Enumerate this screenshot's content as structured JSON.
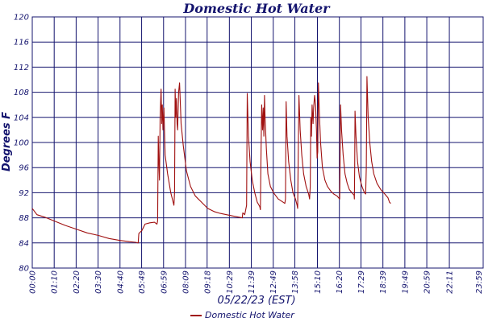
{
  "chart_data": {
    "type": "line",
    "title": "Domestic Hot Water",
    "xlabel": "05/22/23 (EST)",
    "ylabel": "Degrees F",
    "ylim": [
      80,
      120
    ],
    "yticks": [
      80,
      84,
      88,
      92,
      96,
      100,
      104,
      108,
      112,
      116,
      120
    ],
    "xlim_minutes": [
      0,
      1439
    ],
    "xticks": [
      {
        "label": "00:00",
        "minute": 0
      },
      {
        "label": "01:10",
        "minute": 70
      },
      {
        "label": "02:20",
        "minute": 140
      },
      {
        "label": "03:30",
        "minute": 210
      },
      {
        "label": "04:40",
        "minute": 280
      },
      {
        "label": "05:49",
        "minute": 349
      },
      {
        "label": "06:59",
        "minute": 419
      },
      {
        "label": "08:09",
        "minute": 489
      },
      {
        "label": "09:18",
        "minute": 558
      },
      {
        "label": "10:29",
        "minute": 629
      },
      {
        "label": "11:39",
        "minute": 699
      },
      {
        "label": "12:49",
        "minute": 769
      },
      {
        "label": "13:58",
        "minute": 838
      },
      {
        "label": "15:10",
        "minute": 910
      },
      {
        "label": "16:20",
        "minute": 980
      },
      {
        "label": "17:29",
        "minute": 1049
      },
      {
        "label": "18:39",
        "minute": 1119
      },
      {
        "label": "19:49",
        "minute": 1189
      },
      {
        "label": "20:59",
        "minute": 1259
      },
      {
        "label": "22:11",
        "minute": 1331
      },
      {
        "label": "23:59",
        "minute": 1439
      }
    ],
    "grid": true,
    "legend": "bottom",
    "series": [
      {
        "name": "Domestic Hot Water",
        "color": "#a01010",
        "points": [
          [
            0,
            89.5
          ],
          [
            15,
            88.5
          ],
          [
            40,
            88.1
          ],
          [
            70,
            87.5
          ],
          [
            105,
            86.8
          ],
          [
            140,
            86.2
          ],
          [
            175,
            85.6
          ],
          [
            210,
            85.2
          ],
          [
            245,
            84.7
          ],
          [
            280,
            84.4
          ],
          [
            310,
            84.2
          ],
          [
            330,
            84.1
          ],
          [
            338,
            84.0
          ],
          [
            340,
            85.5
          ],
          [
            350,
            86.0
          ],
          [
            360,
            87.0
          ],
          [
            375,
            87.2
          ],
          [
            390,
            87.3
          ],
          [
            398,
            87.0
          ],
          [
            400,
            87.5
          ],
          [
            402,
            101.0
          ],
          [
            404,
            97.0
          ],
          [
            406,
            94.0
          ],
          [
            408,
            104.0
          ],
          [
            411,
            108.5
          ],
          [
            413,
            103.0
          ],
          [
            415,
            106.0
          ],
          [
            417,
            102.0
          ],
          [
            420,
            105.5
          ],
          [
            424,
            98.0
          ],
          [
            432,
            95.0
          ],
          [
            442,
            92.0
          ],
          [
            452,
            90.0
          ],
          [
            454,
            92.0
          ],
          [
            456,
            108.5
          ],
          [
            458,
            104.0
          ],
          [
            460,
            107.0
          ],
          [
            462,
            103.0
          ],
          [
            464,
            102.0
          ],
          [
            467,
            108.0
          ],
          [
            470,
            109.5
          ],
          [
            475,
            103.0
          ],
          [
            482,
            99.5
          ],
          [
            492,
            95.5
          ],
          [
            505,
            93.0
          ],
          [
            520,
            91.5
          ],
          [
            540,
            90.5
          ],
          [
            560,
            89.5
          ],
          [
            580,
            89.0
          ],
          [
            600,
            88.7
          ],
          [
            620,
            88.5
          ],
          [
            640,
            88.3
          ],
          [
            660,
            88.1
          ],
          [
            670,
            88.0
          ],
          [
            672,
            88.8
          ],
          [
            678,
            88.5
          ],
          [
            684,
            90.0
          ],
          [
            686,
            107.8
          ],
          [
            690,
            101.0
          ],
          [
            695,
            97.0
          ],
          [
            702,
            94.0
          ],
          [
            710,
            92.0
          ],
          [
            718,
            90.5
          ],
          [
            726,
            89.8
          ],
          [
            728,
            89.3
          ],
          [
            730,
            98.5
          ],
          [
            732,
            106.0
          ],
          [
            735,
            102.0
          ],
          [
            737,
            105.5
          ],
          [
            739,
            101.0
          ],
          [
            741,
            107.5
          ],
          [
            743,
            104.0
          ],
          [
            747,
            99.0
          ],
          [
            752,
            95.0
          ],
          [
            760,
            93.0
          ],
          [
            770,
            92.0
          ],
          [
            785,
            91.0
          ],
          [
            800,
            90.5
          ],
          [
            806,
            90.3
          ],
          [
            808,
            91.0
          ],
          [
            810,
            106.5
          ],
          [
            813,
            101.0
          ],
          [
            818,
            97.0
          ],
          [
            825,
            94.0
          ],
          [
            832,
            92.0
          ],
          [
            840,
            91.0
          ],
          [
            845,
            90.0
          ],
          [
            847,
            89.5
          ],
          [
            849,
            99.0
          ],
          [
            851,
            107.5
          ],
          [
            855,
            102.0
          ],
          [
            860,
            98.0
          ],
          [
            866,
            95.0
          ],
          [
            874,
            93.0
          ],
          [
            882,
            91.8
          ],
          [
            885,
            91.0
          ],
          [
            887,
            93.0
          ],
          [
            889,
            104.0
          ],
          [
            891,
            101.0
          ],
          [
            893,
            106.0
          ],
          [
            896,
            103.0
          ],
          [
            898,
            105.5
          ],
          [
            901,
            107.5
          ],
          [
            904,
            106.0
          ],
          [
            907,
            102.0
          ],
          [
            909,
            97.5
          ],
          [
            911,
            98.5
          ],
          [
            913,
            109.5
          ],
          [
            916,
            105.0
          ],
          [
            920,
            100.0
          ],
          [
            926,
            96.0
          ],
          [
            934,
            94.0
          ],
          [
            942,
            93.0
          ],
          [
            952,
            92.3
          ],
          [
            962,
            91.8
          ],
          [
            972,
            91.5
          ],
          [
            981,
            91.0
          ],
          [
            982,
            96.0
          ],
          [
            984,
            106.0
          ],
          [
            987,
            102.0
          ],
          [
            992,
            98.0
          ],
          [
            998,
            95.0
          ],
          [
            1005,
            93.5
          ],
          [
            1012,
            92.5
          ],
          [
            1020,
            92.0
          ],
          [
            1027,
            91.6
          ],
          [
            1028,
            91.0
          ],
          [
            1029,
            96.0
          ],
          [
            1030,
            105.0
          ],
          [
            1033,
            101.0
          ],
          [
            1038,
            97.0
          ],
          [
            1044,
            94.5
          ],
          [
            1052,
            93.0
          ],
          [
            1060,
            92.0
          ],
          [
            1064,
            91.8
          ],
          [
            1066,
            96.0
          ],
          [
            1068,
            110.5
          ],
          [
            1072,
            104.0
          ],
          [
            1077,
            100.0
          ],
          [
            1083,
            97.0
          ],
          [
            1090,
            95.0
          ],
          [
            1100,
            93.5
          ],
          [
            1112,
            92.5
          ],
          [
            1125,
            91.8
          ],
          [
            1135,
            91.2
          ],
          [
            1140,
            90.5
          ],
          [
            1144,
            90.3
          ]
        ]
      }
    ]
  }
}
